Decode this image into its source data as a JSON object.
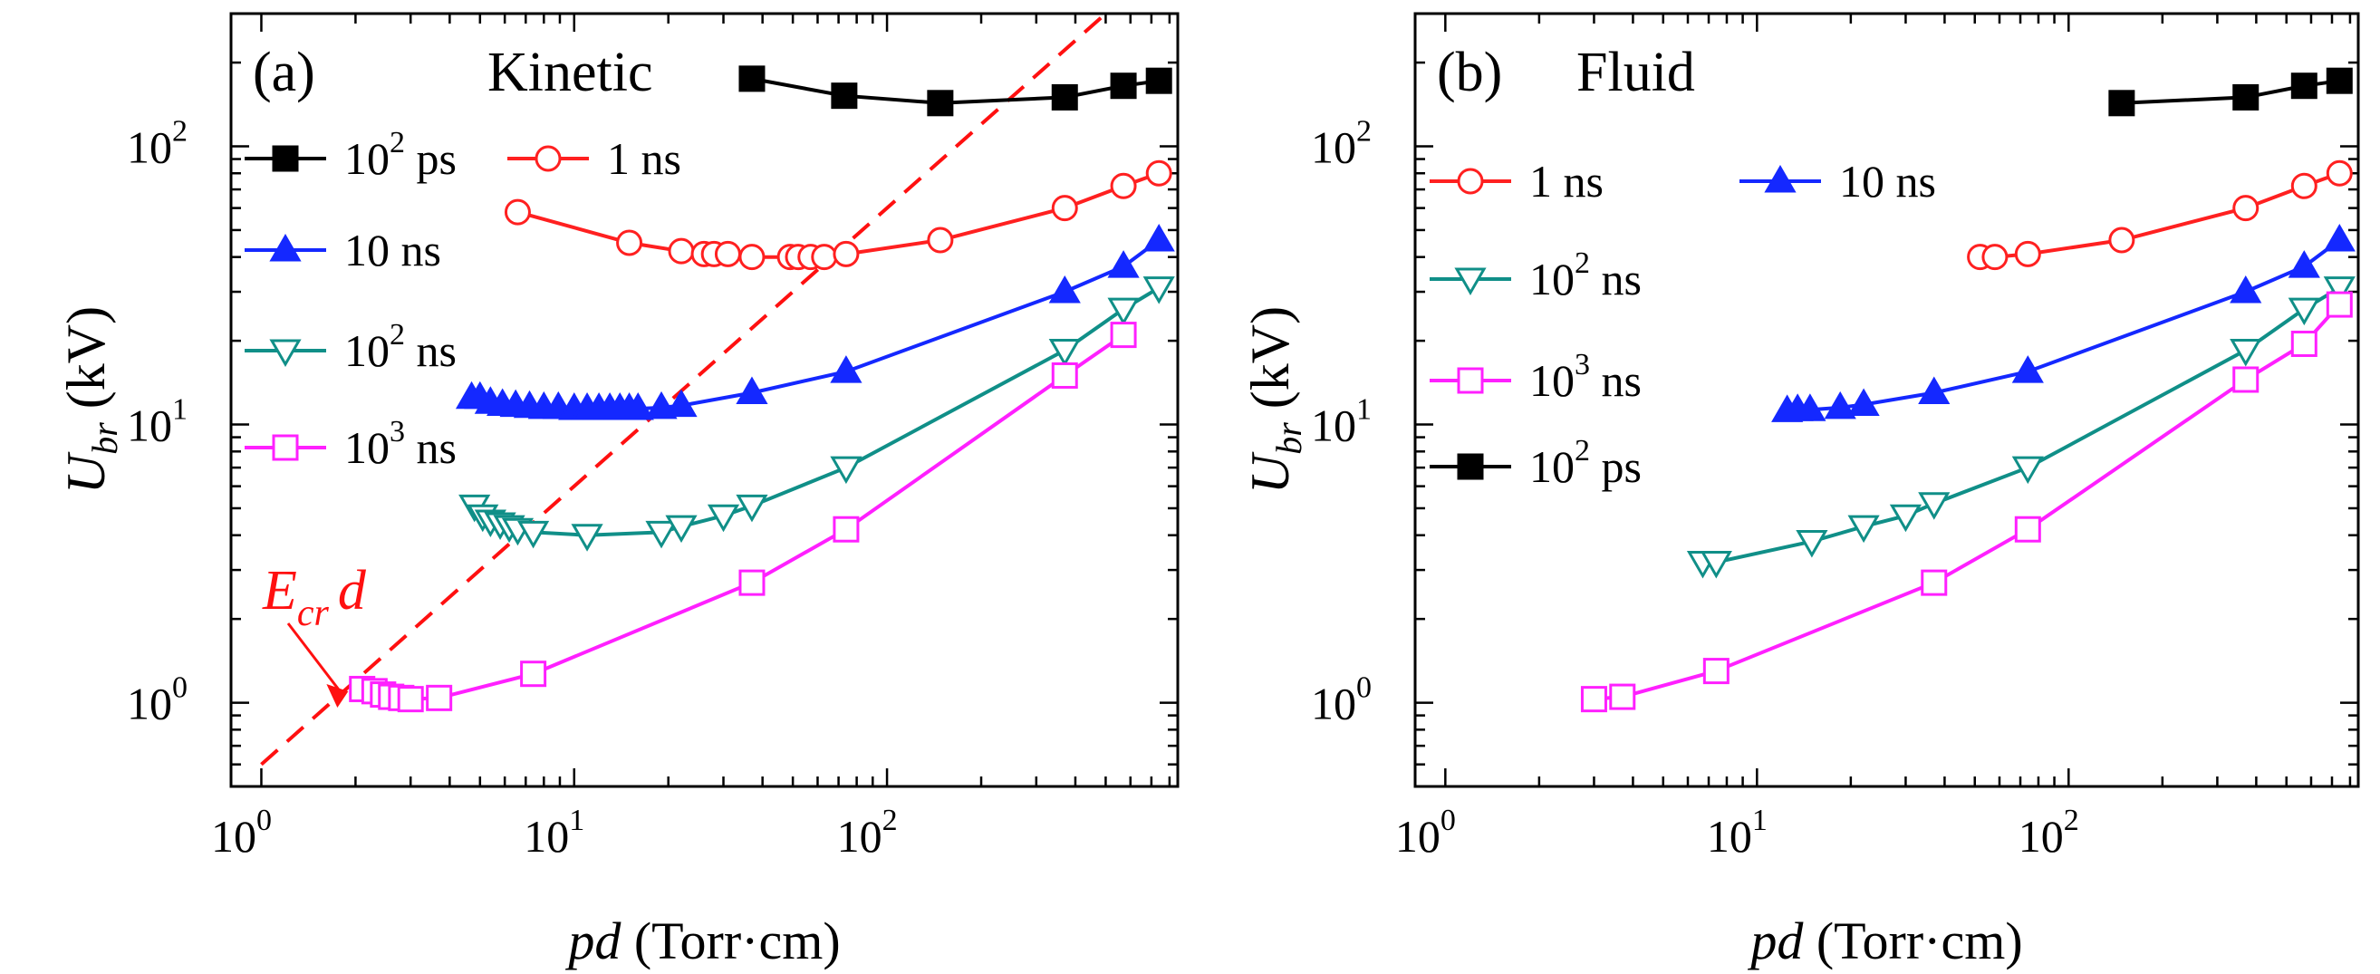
{
  "chart_data": [
    {
      "type": "line",
      "panel_label": "(a)",
      "title": "Kinetic",
      "xlabel": "pd (Torr·cm)",
      "xlabel_italic": "pd",
      "xlabel_rest": " (Torr·cm)",
      "ylabel_symbol": "U",
      "ylabel_sub": "br",
      "ylabel_unit": " (kV)",
      "xscale": "log",
      "yscale": "log",
      "xlim": [
        0.8,
        850
      ],
      "ylim": [
        0.5,
        300
      ],
      "x_ticks": [
        {
          "base": "10",
          "exp": "0",
          "value": 1
        },
        {
          "base": "10",
          "exp": "1",
          "value": 10
        },
        {
          "base": "10",
          "exp": "2",
          "value": 100
        }
      ],
      "y_ticks": [
        {
          "base": "10",
          "exp": "0",
          "value": 1
        },
        {
          "base": "10",
          "exp": "1",
          "value": 10
        },
        {
          "base": "10",
          "exp": "2",
          "value": 100
        }
      ],
      "grid": false,
      "legend_position": "left",
      "legend_layout": [
        [
          "s_ps",
          "s_1ns"
        ],
        [
          "s_10ns"
        ],
        [
          "s_100ns"
        ],
        [
          "s_1000ns"
        ]
      ],
      "series": [
        {
          "id": "s_ps",
          "name_base": "10",
          "name_exp": "2",
          "name_unit": " ps",
          "color": "#000000",
          "marker": "square-filled",
          "x": [
            37,
            73,
            148,
            370,
            570,
            740
          ],
          "y": [
            175,
            152,
            143,
            150,
            165,
            172
          ]
        },
        {
          "id": "s_1ns",
          "name_base": "",
          "name_exp": "",
          "name_unit": "1 ns",
          "color": "#ff2020",
          "marker": "circle-open",
          "x": [
            6.6,
            15,
            22,
            26,
            28,
            31,
            37,
            49,
            52,
            57,
            63,
            74,
            148,
            370,
            570,
            740
          ],
          "y": [
            58,
            45,
            42,
            41,
            41,
            41,
            40,
            40,
            40,
            40,
            40,
            41,
            46,
            60,
            72,
            80
          ]
        },
        {
          "id": "s_10ns",
          "name_base": "",
          "name_exp": "",
          "name_unit": "10 ns",
          "color": "#1428ff",
          "marker": "triangle-filled",
          "x": [
            4.7,
            5.0,
            5.4,
            5.9,
            6.5,
            7.2,
            8.0,
            8.9,
            10,
            11,
            12,
            13,
            14,
            15,
            16,
            19,
            22,
            37,
            74,
            370,
            570,
            740
          ],
          "y": [
            12.5,
            12.5,
            12.0,
            11.8,
            11.7,
            11.6,
            11.5,
            11.5,
            11.4,
            11.4,
            11.4,
            11.4,
            11.4,
            11.4,
            11.4,
            11.5,
            11.7,
            13,
            15.5,
            30,
            37,
            46
          ]
        },
        {
          "id": "s_100ns",
          "name_base": "10",
          "name_exp": "2",
          "name_unit": " ns",
          "color": "#108f88",
          "marker": "triangle-down-open",
          "x": [
            4.8,
            5.1,
            5.4,
            5.8,
            6.2,
            6.6,
            7.4,
            11,
            19,
            22,
            30,
            37,
            74,
            370,
            570,
            740
          ],
          "y": [
            5.1,
            4.7,
            4.5,
            4.4,
            4.3,
            4.2,
            4.1,
            4.0,
            4.1,
            4.3,
            4.7,
            5.1,
            7.0,
            18.5,
            26,
            31
          ]
        },
        {
          "id": "s_1000ns",
          "name_base": "10",
          "name_exp": "3",
          "name_unit": " ns",
          "color": "#ff20ff",
          "marker": "square-open",
          "x": [
            2.1,
            2.3,
            2.45,
            2.6,
            2.8,
            3.0,
            3.7,
            7.4,
            37,
            74,
            370,
            570
          ],
          "y": [
            1.12,
            1.1,
            1.07,
            1.05,
            1.04,
            1.03,
            1.04,
            1.27,
            2.7,
            4.2,
            15,
            21
          ]
        }
      ],
      "annotation": {
        "type": "dashed-line",
        "color": "#ff1010",
        "label_main": "E",
        "label_sub": "cr",
        "label_tail": "d",
        "points": [
          [
            1.0,
            0.6
          ],
          [
            800,
            480
          ]
        ],
        "arrow_target": [
          1.75,
          0.96
        ]
      }
    },
    {
      "type": "line",
      "panel_label": "(b)",
      "title": "Fluid",
      "xlabel": "pd (Torr·cm)",
      "xlabel_italic": "pd",
      "xlabel_rest": " (Torr·cm)",
      "ylabel_symbol": "U",
      "ylabel_sub": "br",
      "ylabel_unit": " (kV)",
      "xscale": "log",
      "yscale": "log",
      "xlim": [
        0.8,
        850
      ],
      "ylim": [
        0.5,
        300
      ],
      "x_ticks": [
        {
          "base": "10",
          "exp": "0",
          "value": 1
        },
        {
          "base": "10",
          "exp": "1",
          "value": 10
        },
        {
          "base": "10",
          "exp": "2",
          "value": 100
        }
      ],
      "y_ticks": [
        {
          "base": "10",
          "exp": "0",
          "value": 1
        },
        {
          "base": "10",
          "exp": "1",
          "value": 10
        },
        {
          "base": "10",
          "exp": "2",
          "value": 100
        }
      ],
      "grid": false,
      "legend_position": "left",
      "legend_layout": [
        [
          "f_1ns",
          "f_10ns"
        ],
        [
          "f_100ns"
        ],
        [
          "f_1000ns"
        ],
        [
          "f_ps"
        ]
      ],
      "series": [
        {
          "id": "f_1ns",
          "name_base": "",
          "name_exp": "",
          "name_unit": "1 ns",
          "color": "#ff2020",
          "marker": "circle-open",
          "x": [
            52,
            58,
            74,
            148,
            370,
            570,
            740
          ],
          "y": [
            40,
            40,
            41,
            46,
            60,
            72,
            80
          ]
        },
        {
          "id": "f_10ns",
          "name_base": "",
          "name_exp": "",
          "name_unit": "10 ns",
          "color": "#1428ff",
          "marker": "triangle-filled",
          "x": [
            12.5,
            13.5,
            14.8,
            18.5,
            22,
            37,
            74,
            370,
            570,
            740
          ],
          "y": [
            11.2,
            11.3,
            11.3,
            11.5,
            11.8,
            13,
            15.5,
            30,
            37,
            46
          ]
        },
        {
          "id": "f_100ns",
          "name_base": "10",
          "name_exp": "2",
          "name_unit": " ns",
          "color": "#108f88",
          "marker": "triangle-down-open",
          "x": [
            6.7,
            7.4,
            15,
            22,
            30,
            37,
            74,
            370,
            570,
            740
          ],
          "y": [
            3.2,
            3.2,
            3.8,
            4.3,
            4.7,
            5.2,
            7.0,
            18.5,
            26,
            31
          ]
        },
        {
          "id": "f_1000ns",
          "name_base": "10",
          "name_exp": "3",
          "name_unit": " ns",
          "color": "#ff20ff",
          "marker": "square-open",
          "x": [
            3.0,
            3.7,
            7.4,
            37,
            74,
            370,
            570,
            740
          ],
          "y": [
            1.03,
            1.05,
            1.3,
            2.7,
            4.2,
            14.5,
            19.5,
            27
          ]
        },
        {
          "id": "f_ps",
          "name_base": "10",
          "name_exp": "2",
          "name_unit": " ps",
          "color": "#000000",
          "marker": "square-filled",
          "x": [
            148,
            370,
            570,
            740
          ],
          "y": [
            143,
            150,
            165,
            172
          ]
        }
      ]
    }
  ]
}
